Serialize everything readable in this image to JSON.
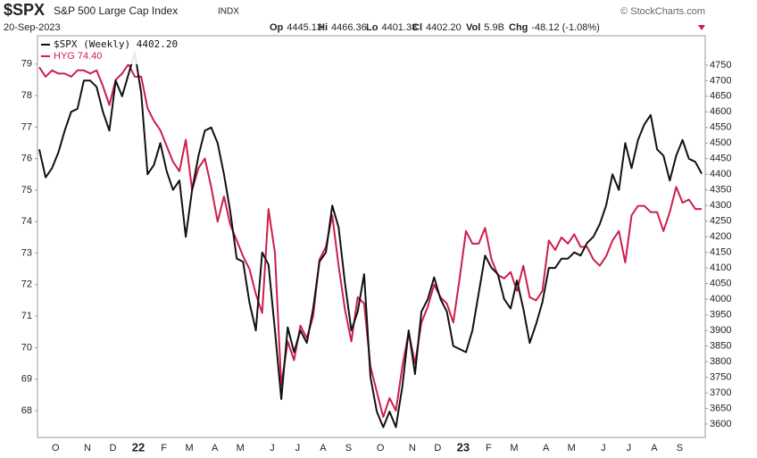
{
  "header": {
    "symbol": "$SPX",
    "name": "S&P 500 Large Cap Index",
    "exchange": "INDX",
    "source": "© StockCharts.com",
    "date": "20-Sep-2023",
    "stats": [
      {
        "label": "Op",
        "value": "4445.13"
      },
      {
        "label": "Hi",
        "value": "4466.36"
      },
      {
        "label": "Lo",
        "value": "4401.38"
      },
      {
        "label": "Cl",
        "value": "4402.20"
      },
      {
        "label": "Vol",
        "value": "5.9B"
      },
      {
        "label": "Chg",
        "value": "-48.12 (-1.08%)"
      }
    ]
  },
  "chart_data": {
    "type": "line",
    "categories": [
      null,
      null,
      "O",
      null,
      null,
      null,
      null,
      "N",
      null,
      null,
      null,
      "D",
      null,
      null,
      null,
      "22",
      null,
      null,
      null,
      "F",
      null,
      null,
      null,
      "M",
      null,
      null,
      null,
      "A",
      null,
      null,
      null,
      "M",
      null,
      null,
      null,
      null,
      "J",
      null,
      null,
      null,
      "J",
      null,
      null,
      null,
      "A",
      null,
      null,
      null,
      "S",
      null,
      null,
      null,
      null,
      "O",
      null,
      null,
      null,
      null,
      "N",
      null,
      null,
      null,
      "D",
      null,
      null,
      null,
      "23",
      null,
      null,
      null,
      "F",
      null,
      null,
      null,
      "M",
      null,
      null,
      null,
      null,
      "A",
      null,
      null,
      null,
      "M",
      null,
      null,
      null,
      null,
      "J",
      null,
      null,
      null,
      "J",
      null,
      null,
      null,
      "A",
      null,
      null,
      null,
      "S",
      null,
      null,
      null,
      null
    ],
    "series": [
      {
        "name": "HYG 74.40",
        "color": "#cc1f4a",
        "axis": "y",
        "values": [
          78.9,
          78.6,
          78.8,
          78.7,
          78.7,
          78.6,
          78.8,
          78.8,
          78.7,
          78.8,
          78.3,
          77.7,
          78.5,
          78.7,
          79.0,
          78.6,
          78.6,
          77.6,
          77.2,
          76.9,
          76.4,
          75.9,
          75.6,
          76.6,
          75.0,
          75.7,
          76.0,
          75.1,
          74.0,
          74.8,
          73.9,
          73.4,
          72.9,
          72.5,
          71.7,
          71.1,
          74.4,
          73.0,
          68.8,
          70.2,
          69.6,
          70.7,
          70.3,
          71.0,
          72.8,
          73.2,
          74.2,
          72.6,
          71.2,
          70.2,
          71.6,
          71.4,
          69.4,
          68.6,
          67.8,
          68.4,
          68.0,
          69.4,
          70.5,
          69.5,
          70.8,
          71.3,
          72.0,
          71.6,
          71.4,
          70.8,
          72.2,
          73.7,
          73.3,
          73.3,
          73.8,
          72.8,
          72.3,
          72.2,
          72.4,
          71.8,
          72.6,
          71.6,
          71.5,
          71.8,
          73.4,
          73.1,
          73.5,
          73.3,
          73.6,
          73.2,
          73.2,
          72.8,
          72.6,
          72.9,
          73.4,
          73.7,
          72.7,
          74.2,
          74.5,
          74.5,
          74.3,
          74.3,
          73.7,
          74.3,
          75.1,
          74.6,
          74.7,
          74.4,
          74.4
        ]
      },
      {
        "name": "$SPX (Weekly) 4402.20",
        "color": "#111111",
        "axis": "y2",
        "values": [
          4480,
          4390,
          4420,
          4470,
          4540,
          4600,
          4610,
          4700,
          4700,
          4680,
          4600,
          4540,
          4700,
          4650,
          4720,
          4790,
          4660,
          4400,
          4430,
          4500,
          4410,
          4350,
          4380,
          4200,
          4350,
          4460,
          4540,
          4550,
          4500,
          4400,
          4280,
          4130,
          4120,
          3990,
          3900,
          4150,
          4110,
          3900,
          3680,
          3910,
          3830,
          3900,
          3860,
          3970,
          4120,
          4150,
          4300,
          4230,
          4050,
          3900,
          3960,
          4080,
          3750,
          3640,
          3590,
          3640,
          3590,
          3720,
          3900,
          3760,
          3960,
          4000,
          4070,
          4000,
          3960,
          3850,
          3840,
          3830,
          3900,
          4020,
          4140,
          4100,
          4080,
          4000,
          3970,
          4060,
          3970,
          3860,
          3920,
          3990,
          4100,
          4100,
          4130,
          4130,
          4150,
          4140,
          4180,
          4200,
          4240,
          4300,
          4400,
          4350,
          4500,
          4420,
          4510,
          4560,
          4590,
          4480,
          4460,
          4380,
          4460,
          4510,
          4450,
          4440,
          4402.2
        ]
      }
    ],
    "ylim": [
      67.15,
      79.9
    ],
    "yticks": [
      68,
      69,
      70,
      71,
      72,
      73,
      74,
      75,
      76,
      77,
      78,
      79
    ],
    "y2lim": [
      3557,
      4844
    ],
    "y2ticks": [
      3600,
      3650,
      3700,
      3750,
      3800,
      3850,
      3900,
      3950,
      4000,
      4050,
      4100,
      4150,
      4200,
      4250,
      4300,
      4350,
      4400,
      4450,
      4500,
      4550,
      4600,
      4650,
      4700,
      4750
    ],
    "grid": false
  }
}
